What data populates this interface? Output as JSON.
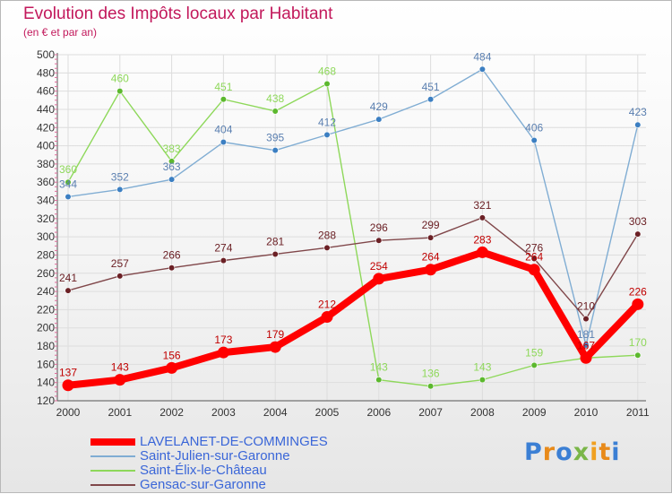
{
  "title": "Evolution des Impôts locaux par Habitant",
  "subtitle": "(en € et par an)",
  "logo": {
    "text": "Proxiti",
    "colors": [
      "#3b7fd4",
      "#e88a1a",
      "#3b7fd4",
      "#7ab648",
      "#f0a020",
      "#e88a1a",
      "#3b7fd4"
    ]
  },
  "chart_data": {
    "type": "line",
    "x": [
      "2000",
      "2001",
      "2002",
      "2003",
      "2004",
      "2005",
      "2006",
      "2007",
      "2008",
      "2009",
      "2010",
      "2011"
    ],
    "ylim": [
      120,
      500
    ],
    "yticks": [
      "120",
      "140",
      "160",
      "180",
      "200",
      "220",
      "240",
      "260",
      "280",
      "300",
      "320",
      "340",
      "360",
      "380",
      "400",
      "420",
      "440",
      "460",
      "480",
      "500"
    ],
    "grid": true,
    "legend_position": "bottom-left",
    "series": [
      {
        "name": "Saint-Élix-le-Château",
        "color": "#8ed85a",
        "marker": "#5cb82e",
        "label_color": "#8ed85a",
        "values": [
          360,
          460,
          383,
          451,
          438,
          468,
          143,
          136,
          143,
          159,
          167,
          170
        ],
        "labels": [
          "360",
          "460",
          "383",
          "451",
          "438",
          "468",
          "143",
          "136",
          "143",
          "159",
          "",
          "170"
        ]
      },
      {
        "name": "Saint-Julien-sur-Garonne",
        "color": "#80add3",
        "marker": "#3c7fc2",
        "label_color": "#5a7fb0",
        "values": [
          344,
          352,
          363,
          404,
          395,
          412,
          429,
          451,
          484,
          406,
          181,
          423
        ],
        "labels": [
          "344",
          "352",
          "363",
          "404",
          "395",
          "412",
          "429",
          "451",
          "484",
          "406",
          "181",
          "423"
        ]
      },
      {
        "name": "Gensac-sur-Garonne",
        "color": "#80474a",
        "marker": "#6b2025",
        "label_color": "#6b2025",
        "values": [
          241,
          257,
          266,
          274,
          281,
          288,
          296,
          299,
          321,
          276,
          210,
          303
        ],
        "labels": [
          "241",
          "257",
          "266",
          "274",
          "281",
          "288",
          "296",
          "299",
          "321",
          "276",
          "210",
          "303"
        ]
      },
      {
        "name": "LAVELANET-DE-COMMINGES",
        "color": "#ff0000",
        "marker": "#ff0000",
        "label_color": "#c00000",
        "values": [
          137,
          143,
          156,
          173,
          179,
          212,
          254,
          264,
          283,
          264,
          167,
          226
        ],
        "labels": [
          "137",
          "143",
          "156",
          "173",
          "179",
          "212",
          "254",
          "264",
          "283",
          "264",
          "167",
          "226"
        ]
      }
    ],
    "legend": [
      {
        "name": "LAVELANET-DE-COMMINGES",
        "color": "#ff0000",
        "text_color": "#3a66d8"
      },
      {
        "name": "Saint-Julien-sur-Garonne",
        "color": "#80add3",
        "text_color": "#3a66d8"
      },
      {
        "name": "Saint-Élix-le-Château",
        "color": "#8ed85a",
        "text_color": "#3a66d8"
      },
      {
        "name": "Gensac-sur-Garonne",
        "color": "#80474a",
        "text_color": "#3a66d8"
      }
    ]
  }
}
